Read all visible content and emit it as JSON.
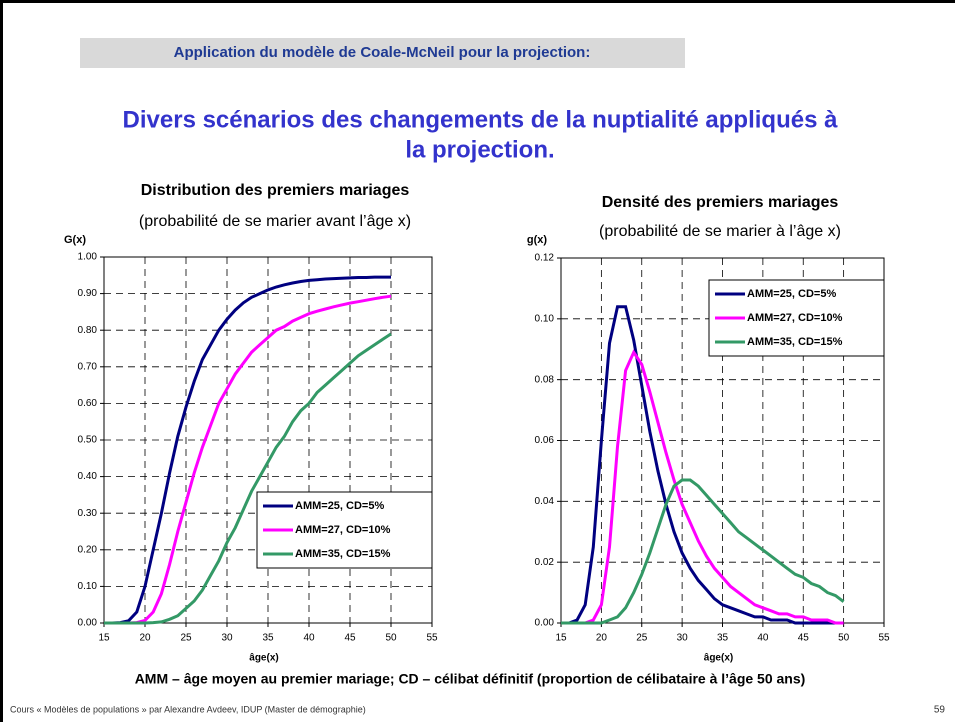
{
  "header": "Application du modèle de Coale-McNeil pour la projection:",
  "title_lines": [
    "Divers scénarios des changements de la nuptialité appliqués à",
    "la projection."
  ],
  "note": "AMM – âge moyen au premier mariage; CD – célibat définitif (proportion de célibataire à l’âge 50 ans)",
  "footer": "Cours « Modèles de populations » par Alexandre Avdeev, IDUP (Master de démographie)",
  "page_number": "59",
  "chart_data": [
    {
      "type": "line",
      "title": "Distribution des premiers mariages",
      "subtitle": "(probabilité de se marier avant l’âge x)",
      "ylabel": "G(x)",
      "xlabel": "âge(x)",
      "grid": true,
      "legend": "lower right",
      "xlim": [
        15,
        55
      ],
      "xticks": [
        15,
        20,
        25,
        30,
        35,
        40,
        45,
        50,
        55
      ],
      "ylim": [
        0,
        1
      ],
      "yticks": [
        {
          "value": 0,
          "label": "0.00"
        },
        {
          "value": 0.1,
          "label": "0.10"
        },
        {
          "value": 0.2,
          "label": "0.20"
        },
        {
          "value": 0.3,
          "label": "0.30"
        },
        {
          "value": 0.4,
          "label": "0.40"
        },
        {
          "value": 0.5,
          "label": "0.50"
        },
        {
          "value": 0.6,
          "label": "0.60"
        },
        {
          "value": 0.7,
          "label": "0.70"
        },
        {
          "value": 0.8,
          "label": "0.80"
        },
        {
          "value": 0.9,
          "label": "0.90"
        },
        {
          "value": 1,
          "label": "1.00"
        }
      ],
      "x": [
        15,
        16,
        17,
        18,
        19,
        20,
        21,
        22,
        23,
        24,
        25,
        26,
        27,
        28,
        29,
        30,
        31,
        32,
        33,
        34,
        35,
        36,
        37,
        38,
        39,
        40,
        41,
        42,
        43,
        44,
        45,
        46,
        47,
        48,
        49,
        50
      ],
      "series": [
        {
          "name": "AMM=25, CD=5%",
          "color": "#000080",
          "values": [
            0,
            0,
            0.001,
            0.006,
            0.03,
            0.1,
            0.2,
            0.3,
            0.41,
            0.51,
            0.59,
            0.66,
            0.72,
            0.76,
            0.8,
            0.83,
            0.855,
            0.875,
            0.89,
            0.9,
            0.91,
            0.918,
            0.924,
            0.929,
            0.933,
            0.936,
            0.938,
            0.94,
            0.941,
            0.942,
            0.943,
            0.944,
            0.944,
            0.945,
            0.945,
            0.945
          ]
        },
        {
          "name": "AMM=27, CD=10%",
          "color": "#ff00ff",
          "values": [
            0,
            0,
            0,
            0,
            0.001,
            0.007,
            0.03,
            0.08,
            0.16,
            0.25,
            0.33,
            0.41,
            0.48,
            0.54,
            0.6,
            0.64,
            0.68,
            0.71,
            0.74,
            0.76,
            0.78,
            0.8,
            0.81,
            0.825,
            0.835,
            0.845,
            0.852,
            0.858,
            0.864,
            0.869,
            0.874,
            0.878,
            0.882,
            0.886,
            0.89,
            0.893
          ]
        },
        {
          "name": "AMM=35, CD=15%",
          "color": "#339966",
          "values": [
            0,
            0,
            0,
            0,
            0,
            0,
            0.001,
            0.003,
            0.01,
            0.02,
            0.04,
            0.06,
            0.09,
            0.13,
            0.17,
            0.22,
            0.26,
            0.31,
            0.36,
            0.4,
            0.44,
            0.48,
            0.51,
            0.55,
            0.58,
            0.6,
            0.63,
            0.65,
            0.67,
            0.69,
            0.71,
            0.73,
            0.745,
            0.76,
            0.775,
            0.79
          ]
        }
      ]
    },
    {
      "type": "line",
      "title": "Densité des premiers mariages",
      "subtitle": "(probabilité de se marier à l’âge x)",
      "ylabel": "g(x)",
      "xlabel": "âge(x)",
      "grid": true,
      "legend": "upper right",
      "xlim": [
        15,
        55
      ],
      "xticks": [
        15,
        20,
        25,
        30,
        35,
        40,
        45,
        50,
        55
      ],
      "ylim": [
        0,
        0.12
      ],
      "yticks": [
        {
          "value": 0,
          "label": "0.00"
        },
        0.02,
        0.04,
        0.06,
        0.08,
        {
          "value": 0.1,
          "label": "0.10"
        },
        0.12
      ],
      "x": [
        15,
        16,
        17,
        18,
        19,
        20,
        21,
        22,
        23,
        24,
        25,
        26,
        27,
        28,
        29,
        30,
        31,
        32,
        33,
        34,
        35,
        36,
        37,
        38,
        39,
        40,
        41,
        42,
        43,
        44,
        45,
        46,
        47,
        48,
        49,
        50
      ],
      "series": [
        {
          "name": "AMM=25, CD=5%",
          "color": "#000080",
          "values": [
            0,
            0,
            0.001,
            0.006,
            0.025,
            0.06,
            0.092,
            0.104,
            0.104,
            0.093,
            0.078,
            0.063,
            0.05,
            0.039,
            0.03,
            0.023,
            0.018,
            0.014,
            0.011,
            0.008,
            0.006,
            0.005,
            0.004,
            0.003,
            0.002,
            0.002,
            0.001,
            0.001,
            0.001,
            0,
            0,
            0,
            0,
            0,
            0,
            0
          ]
        },
        {
          "name": "AMM=27, CD=10%",
          "color": "#ff00ff",
          "values": [
            0,
            0,
            0,
            0,
            0.001,
            0.006,
            0.025,
            0.058,
            0.083,
            0.089,
            0.085,
            0.076,
            0.066,
            0.056,
            0.047,
            0.039,
            0.033,
            0.027,
            0.022,
            0.018,
            0.015,
            0.012,
            0.01,
            0.008,
            0.006,
            0.005,
            0.004,
            0.003,
            0.003,
            0.002,
            0.002,
            0.001,
            0.001,
            0.001,
            0,
            0
          ]
        },
        {
          "name": "AMM=35, CD=15%",
          "color": "#339966",
          "values": [
            0,
            0,
            0,
            0,
            0,
            0,
            0.001,
            0.002,
            0.005,
            0.01,
            0.016,
            0.023,
            0.031,
            0.039,
            0.045,
            0.047,
            0.047,
            0.045,
            0.042,
            0.039,
            0.036,
            0.033,
            0.03,
            0.028,
            0.026,
            0.024,
            0.022,
            0.02,
            0.018,
            0.016,
            0.015,
            0.013,
            0.012,
            0.01,
            0.009,
            0.007
          ]
        }
      ]
    }
  ]
}
